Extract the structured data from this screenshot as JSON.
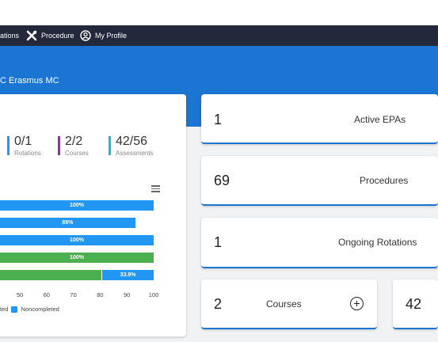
{
  "nav": {
    "rotations_label": "ations",
    "procedure_label": "Procedure",
    "profile_label": "My Profile"
  },
  "header": {
    "institution": "C Erasmus MC"
  },
  "stats": [
    {
      "value": "0/1",
      "label": "Rotations",
      "color": "#2196f3"
    },
    {
      "value": "2/2",
      "label": "Courses",
      "color": "#9c27b0"
    },
    {
      "value": "42/56",
      "label": "Assessments",
      "color": "#26b5d6"
    }
  ],
  "chart_data": {
    "type": "bar",
    "orientation": "horizontal",
    "stacked": true,
    "xlim": [
      0,
      100
    ],
    "xticks": [
      "50",
      "60",
      "70",
      "80",
      "90",
      "100"
    ],
    "bars": [
      {
        "completed": 0,
        "noncompleted": 100,
        "label": "100%"
      },
      {
        "completed": 0,
        "noncompleted": 88,
        "label": "88%"
      },
      {
        "completed": 0,
        "noncompleted": 100,
        "label": "100%"
      },
      {
        "completed": 100,
        "noncompleted": 0,
        "label": "100%"
      },
      {
        "completed": 66.1,
        "noncompleted": 33.9,
        "label": "33.9%"
      }
    ],
    "legend": [
      {
        "name": "Completed",
        "visible_text": "ted",
        "color": "#4caf50"
      },
      {
        "name": "Noncompleted",
        "visible_text": "Noncompleted",
        "color": "#2196f3"
      }
    ],
    "legend_placement": "bottom"
  },
  "metrics": {
    "active_epas": {
      "value": "1",
      "label": "Active EPAs"
    },
    "procedures": {
      "value": "69",
      "label": "Procedures"
    },
    "ongoing_rotations": {
      "value": "1",
      "label": "Ongoing Rotations"
    },
    "courses": {
      "value": "2",
      "label": "Courses"
    },
    "assessments": {
      "value": "42"
    }
  },
  "colors": {
    "nav_bg": "#23283a",
    "brand_blue": "#1b75d3",
    "completed": "#4caf50",
    "noncompleted": "#2196f3"
  }
}
